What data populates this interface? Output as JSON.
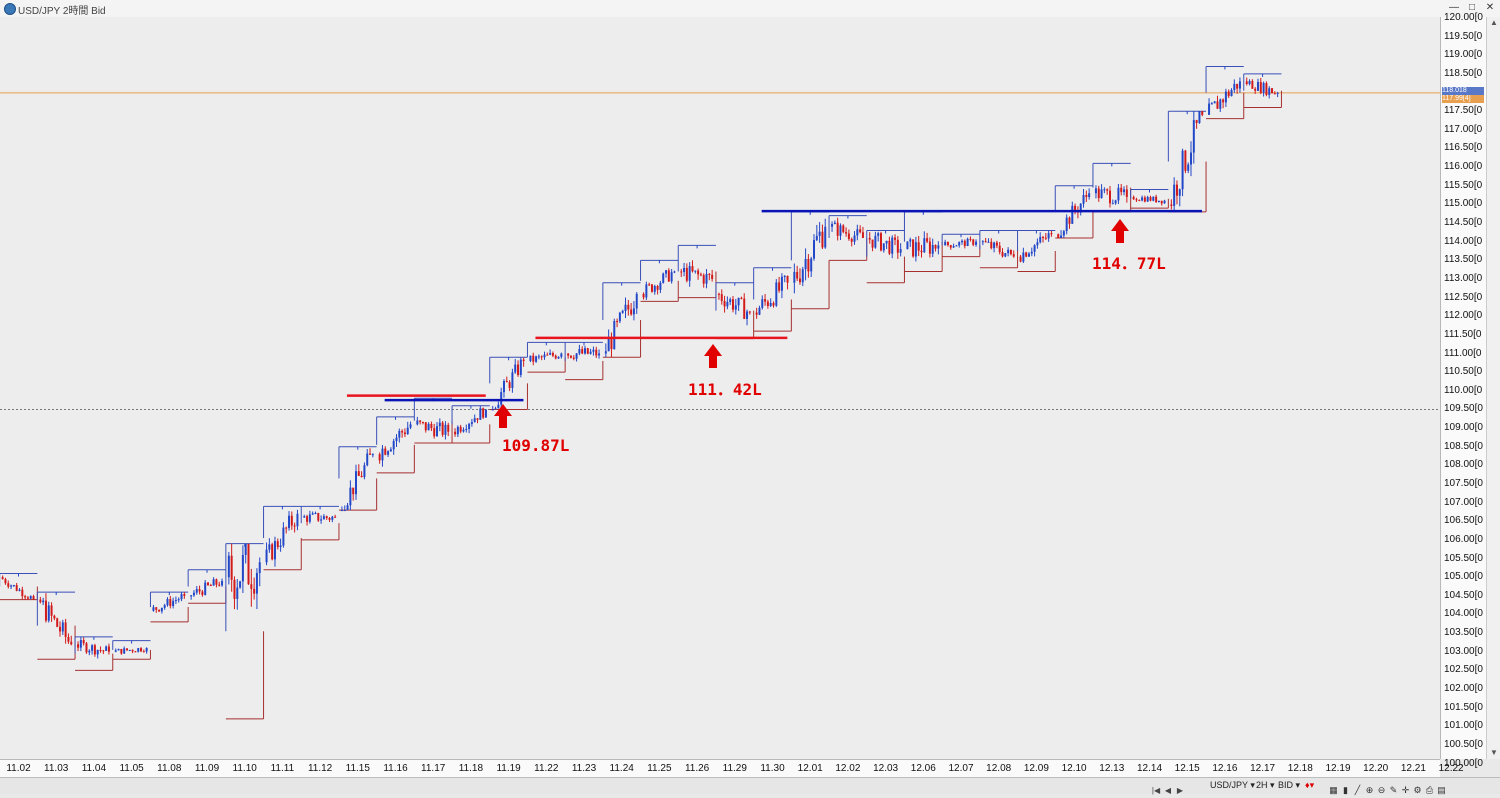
{
  "window": {
    "title": "USD/JPY 2時間 Bid"
  },
  "price_axis": {
    "labels": [
      "120.00[0",
      "119.50[0",
      "119.00[0",
      "118.50[0",
      "118.00[0",
      "117.50[0",
      "117.00[0",
      "116.50[0",
      "116.00[0",
      "115.50[0",
      "115.00[0",
      "114.50[0",
      "114.00[0",
      "113.50[0",
      "113.00[0",
      "112.50[0",
      "112.00[0",
      "111.50[0",
      "111.00[0",
      "110.50[0",
      "110.00[0",
      "109.50[0",
      "109.00[0",
      "108.50[0",
      "108.00[0",
      "107.50[0",
      "107.00[0",
      "106.50[0",
      "106.00[0",
      "105.50[0",
      "105.00[0",
      "104.50[0",
      "104.00[0",
      "103.50[0",
      "103.00[0",
      "102.50[0",
      "102.00[0",
      "101.50[0",
      "101.00[0",
      "100.50[0",
      "100.00[0"
    ],
    "current_ask": "118.018",
    "current_bid": "117.99[4]"
  },
  "time_axis": {
    "labels": [
      "11.02",
      "11.03",
      "11.04",
      "11.05",
      "11.08",
      "11.09",
      "11.10",
      "11.11",
      "11.12",
      "11.15",
      "11.16",
      "11.17",
      "11.18",
      "11.19",
      "11.22",
      "11.23",
      "11.24",
      "11.25",
      "11.26",
      "11.29",
      "11.30",
      "12.01",
      "12.02",
      "12.03",
      "12.06",
      "12.07",
      "12.08",
      "12.09",
      "12.10",
      "12.13",
      "12.14",
      "12.15",
      "12.16",
      "12.17",
      "12.18",
      "12.19",
      "12.20",
      "12.21",
      "12.22"
    ]
  },
  "annotations": [
    {
      "text": "109.87L"
    },
    {
      "text": "111．42L"
    },
    {
      "text": "114．77L"
    }
  ],
  "statusbar": {
    "symbol": "USD/JPY ▾",
    "timeframe": "2H ▾",
    "side": "BID ▾"
  },
  "colors": {
    "background": "#ededed",
    "bull_candle": "#2247c8",
    "bear_candle": "#d21a1a",
    "box_high": "#3a4fb8",
    "box_low": "#a63030",
    "support_line": "#e8141e",
    "resistance_line": "#0a14b4",
    "current_price_line": "#e8a050",
    "arrow": "#e00000"
  },
  "chart_data": {
    "type": "candlestick",
    "symbol": "USD/JPY",
    "timeframe": "2H",
    "ylim": [
      100.0,
      120.0
    ],
    "dates": [
      "11.02",
      "11.03",
      "11.04",
      "11.05",
      "11.08",
      "11.09",
      "11.10",
      "11.11",
      "11.12",
      "11.15",
      "11.16",
      "11.17",
      "11.18",
      "11.19",
      "11.22",
      "11.23",
      "11.24",
      "11.25",
      "11.26",
      "11.29",
      "11.30",
      "12.01",
      "12.02",
      "12.03",
      "12.06",
      "12.07",
      "12.08",
      "12.09",
      "12.10",
      "12.13",
      "12.14",
      "12.15",
      "12.16",
      "12.17"
    ],
    "daily_ranges": [
      {
        "date": "11.02",
        "open": 105.0,
        "high": 105.1,
        "low": 104.4,
        "close": 104.4
      },
      {
        "date": "11.03",
        "open": 104.4,
        "high": 104.6,
        "low": 102.8,
        "close": 103.2
      },
      {
        "date": "11.04",
        "open": 103.2,
        "high": 103.4,
        "low": 102.5,
        "close": 103.0
      },
      {
        "date": "11.05",
        "open": 103.0,
        "high": 103.3,
        "low": 102.8,
        "close": 103.1
      },
      {
        "date": "11.08",
        "open": 104.1,
        "high": 104.6,
        "low": 103.8,
        "close": 104.5
      },
      {
        "date": "11.09",
        "open": 104.5,
        "high": 105.2,
        "low": 104.3,
        "close": 104.9
      },
      {
        "date": "11.10",
        "open": 105.0,
        "high": 105.9,
        "low": 101.2,
        "close": 105.4
      },
      {
        "date": "11.11",
        "open": 105.4,
        "high": 106.9,
        "low": 105.2,
        "close": 106.7
      },
      {
        "date": "11.12",
        "open": 106.6,
        "high": 106.9,
        "low": 106.0,
        "close": 106.6
      },
      {
        "date": "11.15",
        "open": 106.8,
        "high": 108.5,
        "low": 106.8,
        "close": 108.3
      },
      {
        "date": "11.16",
        "open": 108.3,
        "high": 109.3,
        "low": 107.8,
        "close": 109.1
      },
      {
        "date": "11.17",
        "open": 109.1,
        "high": 109.8,
        "low": 108.6,
        "close": 108.9
      },
      {
        "date": "11.18",
        "open": 108.9,
        "high": 109.6,
        "low": 108.6,
        "close": 109.5
      },
      {
        "date": "11.19",
        "open": 109.5,
        "high": 110.9,
        "low": 109.5,
        "close": 110.8
      },
      {
        "date": "11.22",
        "open": 110.8,
        "high": 111.3,
        "low": 110.5,
        "close": 111.0
      },
      {
        "date": "11.23",
        "open": 111.0,
        "high": 111.3,
        "low": 110.3,
        "close": 111.0
      },
      {
        "date": "11.24",
        "open": 111.0,
        "high": 112.9,
        "low": 110.9,
        "close": 112.6
      },
      {
        "date": "11.25",
        "open": 112.6,
        "high": 113.5,
        "low": 112.4,
        "close": 113.2
      },
      {
        "date": "11.26",
        "open": 113.2,
        "high": 113.9,
        "low": 112.5,
        "close": 113.0
      },
      {
        "date": "11.29",
        "open": 112.6,
        "high": 112.9,
        "low": 111.4,
        "close": 112.1
      },
      {
        "date": "11.30",
        "open": 112.1,
        "high": 113.3,
        "low": 111.6,
        "close": 112.9
      },
      {
        "date": "12.01",
        "open": 112.9,
        "high": 114.8,
        "low": 112.2,
        "close": 114.4
      },
      {
        "date": "12.02",
        "open": 114.4,
        "high": 114.7,
        "low": 113.5,
        "close": 114.1
      },
      {
        "date": "12.03",
        "open": 114.1,
        "high": 114.3,
        "low": 112.9,
        "close": 113.8
      },
      {
        "date": "12.06",
        "open": 113.8,
        "high": 114.8,
        "low": 113.2,
        "close": 113.9
      },
      {
        "date": "12.07",
        "open": 113.9,
        "high": 114.2,
        "low": 113.6,
        "close": 114.0
      },
      {
        "date": "12.08",
        "open": 114.0,
        "high": 114.3,
        "low": 113.3,
        "close": 113.6
      },
      {
        "date": "12.09",
        "open": 113.6,
        "high": 114.3,
        "low": 113.2,
        "close": 114.2
      },
      {
        "date": "12.10",
        "open": 114.2,
        "high": 115.5,
        "low": 114.1,
        "close": 115.3
      },
      {
        "date": "12.13",
        "open": 115.3,
        "high": 116.1,
        "low": 114.8,
        "close": 115.2
      },
      {
        "date": "12.14",
        "open": 115.2,
        "high": 115.4,
        "low": 114.9,
        "close": 115.1
      },
      {
        "date": "12.15",
        "open": 115.0,
        "high": 117.5,
        "low": 114.8,
        "close": 117.4
      },
      {
        "date": "12.16",
        "open": 117.4,
        "high": 118.7,
        "low": 117.3,
        "close": 118.3
      },
      {
        "date": "12.17",
        "open": 118.3,
        "high": 118.5,
        "low": 117.6,
        "close": 117.99
      }
    ],
    "horizontal_lines": [
      {
        "price": 109.87,
        "color": "red",
        "from": "11.15",
        "to": "11.18"
      },
      {
        "price": 109.75,
        "color": "blue",
        "from": "11.16",
        "to": "11.19"
      },
      {
        "price": 111.42,
        "color": "red",
        "from": "11.22",
        "to": "11.30"
      },
      {
        "price": 114.82,
        "color": "blue",
        "from": "11.30",
        "to": "12.15"
      }
    ],
    "current_price": 117.99,
    "reference_price": 109.5,
    "grid": false
  }
}
